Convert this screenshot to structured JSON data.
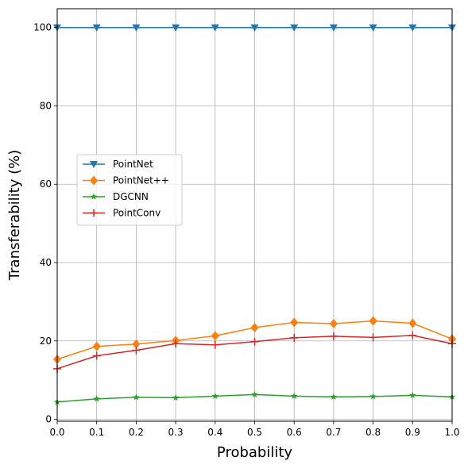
{
  "chart_data": {
    "type": "line",
    "title": "",
    "xlabel": "Probability",
    "ylabel": "Transferability (%)",
    "x": [
      0.0,
      0.1,
      0.2,
      0.3,
      0.4,
      0.5,
      0.6,
      0.7,
      0.8,
      0.9,
      1.0
    ],
    "xticks": [
      "0.0",
      "0.1",
      "0.2",
      "0.3",
      "0.4",
      "0.5",
      "0.6",
      "0.7",
      "0.8",
      "0.9",
      "1.0"
    ],
    "yticks": [
      "0",
      "20",
      "40",
      "60",
      "80",
      "100"
    ],
    "xlim": [
      0.0,
      1.0
    ],
    "ylim": [
      -0.5,
      104.8
    ],
    "grid": true,
    "legend_position": "center-left",
    "series": [
      {
        "name": "PointNet",
        "color": "#1f77b4",
        "marker": "triangle-down",
        "values": [
          100,
          100,
          100,
          100,
          100,
          100,
          100,
          100,
          100,
          100,
          100
        ]
      },
      {
        "name": "PointNet++",
        "color": "#ff7f0e",
        "marker": "diamond",
        "values": [
          15.3,
          18.6,
          19.2,
          20.1,
          21.3,
          23.4,
          24.7,
          24.4,
          25.1,
          24.5,
          20.5
        ]
      },
      {
        "name": "DGCNN",
        "color": "#2ca02c",
        "marker": "star",
        "values": [
          4.4,
          5.2,
          5.6,
          5.5,
          5.9,
          6.3,
          5.9,
          5.7,
          5.8,
          6.1,
          5.7
        ]
      },
      {
        "name": "PointConv",
        "color": "#d62728",
        "marker": "plus",
        "values": [
          12.9,
          16.2,
          17.6,
          19.3,
          19.0,
          19.8,
          20.8,
          21.2,
          20.9,
          21.4,
          19.3
        ]
      }
    ]
  }
}
